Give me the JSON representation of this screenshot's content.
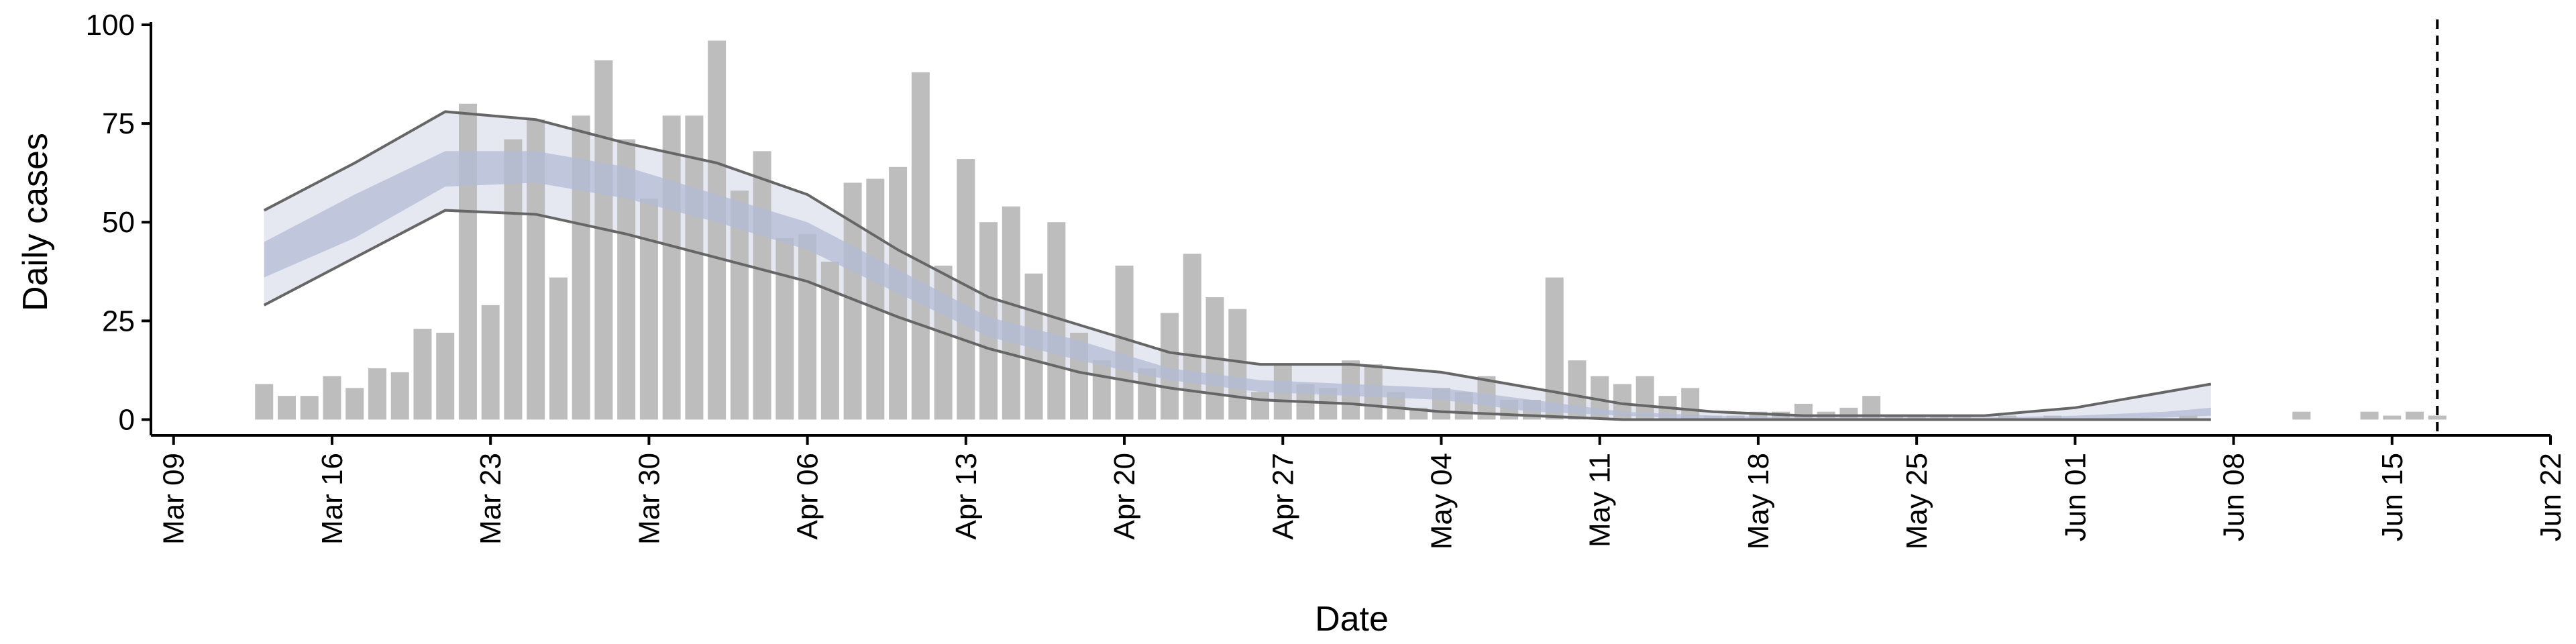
{
  "chart_data": {
    "type": "bar",
    "xlabel": "Date",
    "ylabel": "Daily cases",
    "xlim": [
      "Mar 08",
      "Jun 22"
    ],
    "xticks": [
      "Mar 09",
      "Mar 16",
      "Mar 23",
      "Mar 30",
      "Apr 06",
      "Apr 13",
      "Apr 20",
      "Apr 27",
      "May 04",
      "May 11",
      "May 18",
      "May 25",
      "Jun 01",
      "Jun 08",
      "Jun 15",
      "Jun 22"
    ],
    "ylim": [
      -4,
      100
    ],
    "yticks": [
      0,
      25,
      50,
      75,
      100
    ],
    "color": "#bdbdbd",
    "x": [
      "Mar 13",
      "Mar 14",
      "Mar 15",
      "Mar 16",
      "Mar 17",
      "Mar 18",
      "Mar 19",
      "Mar 20",
      "Mar 21",
      "Mar 22",
      "Mar 23",
      "Mar 24",
      "Mar 25",
      "Mar 26",
      "Mar 27",
      "Mar 28",
      "Mar 29",
      "Mar 30",
      "Mar 31",
      "Apr 01",
      "Apr 02",
      "Apr 03",
      "Apr 04",
      "Apr 05",
      "Apr 06",
      "Apr 07",
      "Apr 08",
      "Apr 09",
      "Apr 10",
      "Apr 11",
      "Apr 12",
      "Apr 13",
      "Apr 14",
      "Apr 15",
      "Apr 16",
      "Apr 17",
      "Apr 18",
      "Apr 19",
      "Apr 20",
      "Apr 21",
      "Apr 22",
      "Apr 23",
      "Apr 24",
      "Apr 25",
      "Apr 26",
      "Apr 27",
      "Apr 28",
      "Apr 29",
      "Apr 30",
      "May 01",
      "May 02",
      "May 03",
      "May 04",
      "May 05",
      "May 06",
      "May 07",
      "May 08",
      "May 09",
      "May 10",
      "May 11",
      "May 12",
      "May 13",
      "May 14",
      "May 15",
      "May 16",
      "May 17",
      "May 18",
      "May 19",
      "May 20",
      "May 21",
      "May 22",
      "May 23",
      "May 24",
      "May 25",
      "May 26",
      "May 27",
      "May 28",
      "May 29",
      "May 30",
      "May 31",
      "Jun 01",
      "Jun 02",
      "Jun 03",
      "Jun 04",
      "Jun 05",
      "Jun 06",
      "Jun 07",
      "Jun 08",
      "Jun 09",
      "Jun 10",
      "Jun 11",
      "Jun 12",
      "Jun 13",
      "Jun 14",
      "Jun 15",
      "Jun 16",
      "Jun 17"
    ],
    "values": [
      9,
      6,
      6,
      11,
      8,
      13,
      12,
      23,
      22,
      80,
      29,
      71,
      76,
      36,
      77,
      91,
      71,
      56,
      77,
      77,
      96,
      58,
      68,
      46,
      47,
      40,
      60,
      61,
      64,
      88,
      39,
      66,
      50,
      54,
      37,
      50,
      22,
      15,
      39,
      13,
      27,
      42,
      31,
      28,
      7,
      14,
      9,
      8,
      15,
      14,
      7,
      3,
      8,
      7,
      11,
      5,
      5,
      36,
      15,
      11,
      9,
      11,
      6,
      8,
      1,
      1,
      2,
      2,
      4,
      2,
      3,
      6,
      1,
      1,
      1,
      1,
      0,
      1,
      0,
      1,
      0,
      0,
      0,
      0,
      0,
      1,
      0,
      0,
      0,
      0,
      2,
      0,
      0,
      2,
      1,
      2,
      1
    ],
    "band_x": [
      "Mar 13",
      "Mar 17",
      "Mar 21",
      "Mar 25",
      "Mar 29",
      "Apr 02",
      "Apr 06",
      "Apr 10",
      "Apr 14",
      "Apr 18",
      "Apr 22",
      "Apr 26",
      "Apr 30",
      "May 04",
      "May 08",
      "May 12",
      "May 16",
      "May 20",
      "May 24",
      "May 28",
      "Jun 01",
      "Jun 05",
      "Jun 07"
    ],
    "outer": {
      "color": "#e6e8f1",
      "line_color": "#666666",
      "upper": [
        53,
        65,
        78,
        76,
        70,
        65,
        57,
        43,
        31,
        24,
        17,
        14,
        14,
        12,
        8,
        4,
        2,
        1,
        1,
        1,
        3,
        7,
        9
      ],
      "lower": [
        29,
        41,
        53,
        52,
        47,
        41,
        35,
        26,
        18,
        12,
        8,
        5,
        4,
        2,
        1,
        0,
        0,
        0,
        0,
        0,
        0,
        0,
        0
      ]
    },
    "inner": {
      "color": "#b3bcd6",
      "upper": [
        45,
        57,
        68,
        68,
        64,
        57,
        50,
        38,
        26,
        20,
        13,
        10,
        9,
        8,
        5,
        2,
        1,
        0.5,
        0.5,
        0.5,
        1,
        2,
        3
      ],
      "lower": [
        36,
        46,
        59,
        60,
        56,
        50,
        43,
        32,
        21,
        15,
        10,
        7,
        6,
        5,
        2,
        1,
        0,
        0,
        0,
        0,
        0,
        0.5,
        1
      ]
    },
    "vline": "Jun 17"
  }
}
